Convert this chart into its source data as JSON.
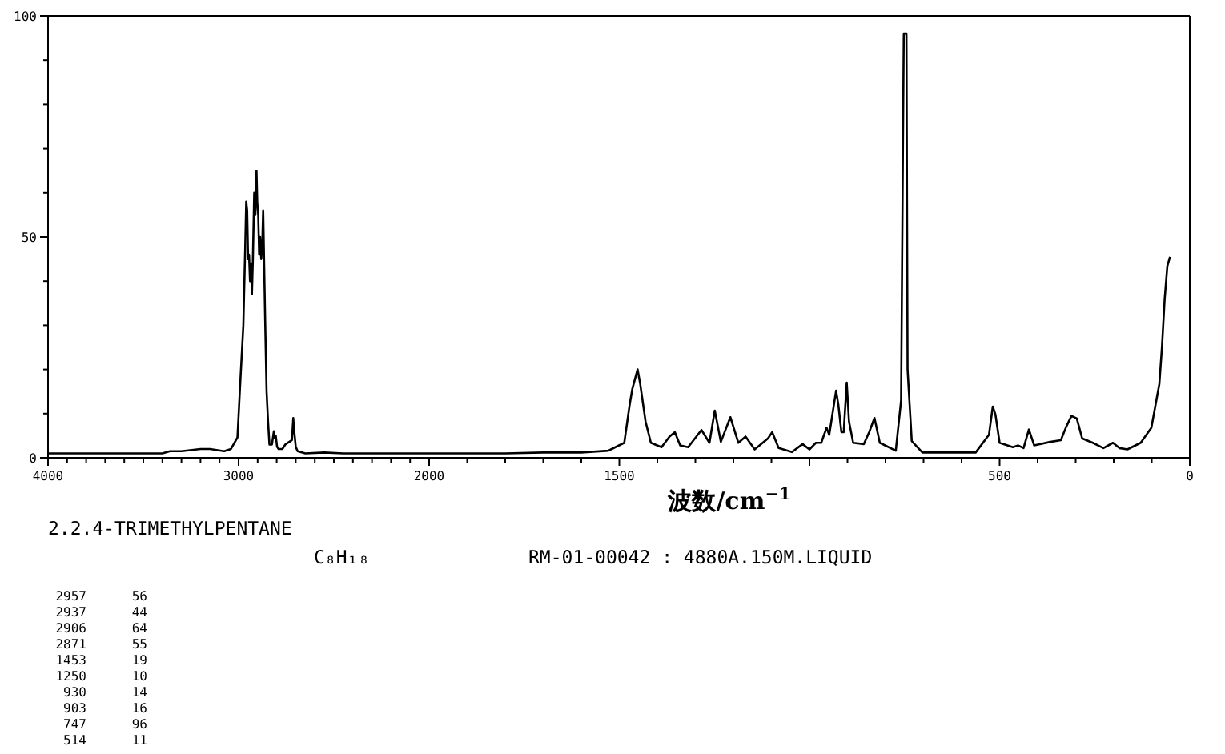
{
  "chart_data": [
    {
      "type": "line",
      "title": "2.2.4-TRIMETHYLPENTANE",
      "subtitle": "C₈H₁₈",
      "annotations": [
        "RM-01-00042 : 4880A.150M.LIQUID",
        "2957 56",
        "2937 44",
        "2906 64",
        "2871 55",
        "1453 19",
        "1250 10",
        "930 14",
        "903 16",
        "747 96",
        "514 11"
      ],
      "xlim": [
        4000,
        2000
      ],
      "xticks": [
        4000,
        3000,
        2000
      ],
      "ylim": [
        0,
        100
      ],
      "yticks": [
        0,
        {
          "value": 10,
          "label": null
        },
        {
          "value": 20,
          "label": null
        },
        {
          "value": 30,
          "label": null
        },
        {
          "value": 40,
          "label": null
        },
        50,
        {
          "value": 60,
          "label": null
        },
        {
          "value": 70,
          "label": null
        },
        {
          "value": 80,
          "label": null
        },
        {
          "value": 90,
          "label": null
        },
        100
      ],
      "x": [
        4000,
        3900,
        3800,
        3600,
        3400,
        3360,
        3300,
        3200,
        3150,
        3076,
        3040,
        3006,
        2990,
        2975,
        2965,
        2960,
        2955,
        2950,
        2945,
        2940,
        2935,
        2930,
        2925,
        2918,
        2912,
        2906,
        2902,
        2897,
        2892,
        2887,
        2881,
        2876,
        2871,
        2866,
        2860,
        2853,
        2845,
        2838,
        2825,
        2815,
        2810,
        2805,
        2798,
        2790,
        2770,
        2755,
        2720,
        2713,
        2708,
        2700,
        2690,
        2650,
        2550,
        2450,
        2300,
        2200,
        2100,
        2000
      ],
      "series": [
        {
          "color": "#000000",
          "values": [
            1,
            1,
            1,
            1,
            1,
            1.5,
            1.5,
            2,
            2,
            1.5,
            2,
            4.6,
            18,
            30,
            48,
            58,
            56,
            45,
            46,
            40,
            44,
            37,
            45,
            60,
            55,
            65,
            58,
            55,
            46,
            50,
            45,
            48,
            56,
            44,
            30,
            15,
            8,
            3,
            3,
            6,
            4.5,
            5,
            2.5,
            2,
            2,
            3,
            4,
            9,
            6,
            2.5,
            1.5,
            1,
            1.2,
            1,
            1,
            1,
            1,
            1
          ]
        }
      ]
    },
    {
      "type": "line",
      "xlabel": "波数/cm$^{−1}$",
      "xlim": [
        2000,
        0
      ],
      "xticks": [
        1500,
        {
          "value": 1000,
          "label": null
        },
        500,
        0
      ],
      "ylim": [
        0,
        100
      ],
      "tick_labels": "x",
      "x": [
        2000,
        1900,
        1800,
        1700,
        1600,
        1529,
        1487,
        1473,
        1466,
        1452,
        1445,
        1431,
        1417,
        1389,
        1368,
        1354,
        1340,
        1319,
        1284,
        1263,
        1249,
        1233,
        1208,
        1187,
        1168,
        1144,
        1109,
        1098,
        1081,
        1046,
        1018,
        1000,
        983,
        969,
        955,
        948,
        930,
        924,
        916,
        910,
        902,
        896,
        885,
        857,
        843,
        829,
        815,
        773,
        759,
        752,
        745,
        742,
        731,
        703,
        563,
        528,
        518,
        511,
        500,
        465,
        451,
        437,
        423,
        409,
        367,
        339,
        325,
        311,
        297,
        283,
        255,
        227,
        202,
        185,
        164,
        129,
        101,
        80,
        73,
        66,
        59,
        52
      ],
      "series": [
        {
          "color": "#000000",
          "values": [
            1,
            1,
            1,
            1.2,
            1.2,
            1.6,
            3.4,
            11.9,
            15.5,
            20,
            16.7,
            8.2,
            3.4,
            2.4,
            4.8,
            5.8,
            2.8,
            2.4,
            6.3,
            3.4,
            10.7,
            3.6,
            9.2,
            3.4,
            4.8,
            1.9,
            4.4,
            5.8,
            2.2,
            1.3,
            3.1,
            1.9,
            3.4,
            3.4,
            6.8,
            5.2,
            15.2,
            12,
            5.8,
            5.8,
            17,
            8.2,
            3.4,
            3.1,
            5.8,
            9,
            3.4,
            1.6,
            13,
            96,
            96,
            20,
            3.8,
            1.2,
            1.2,
            5.2,
            11.6,
            9.8,
            3.4,
            2.4,
            2.8,
            2.2,
            6.4,
            2.8,
            3.6,
            4,
            7,
            9.5,
            8.9,
            4.4,
            3.4,
            2.2,
            3.4,
            2.2,
            1.9,
            3.4,
            6.8,
            16.7,
            25.2,
            36,
            43.4,
            45.5
          ]
        }
      ]
    }
  ]
}
